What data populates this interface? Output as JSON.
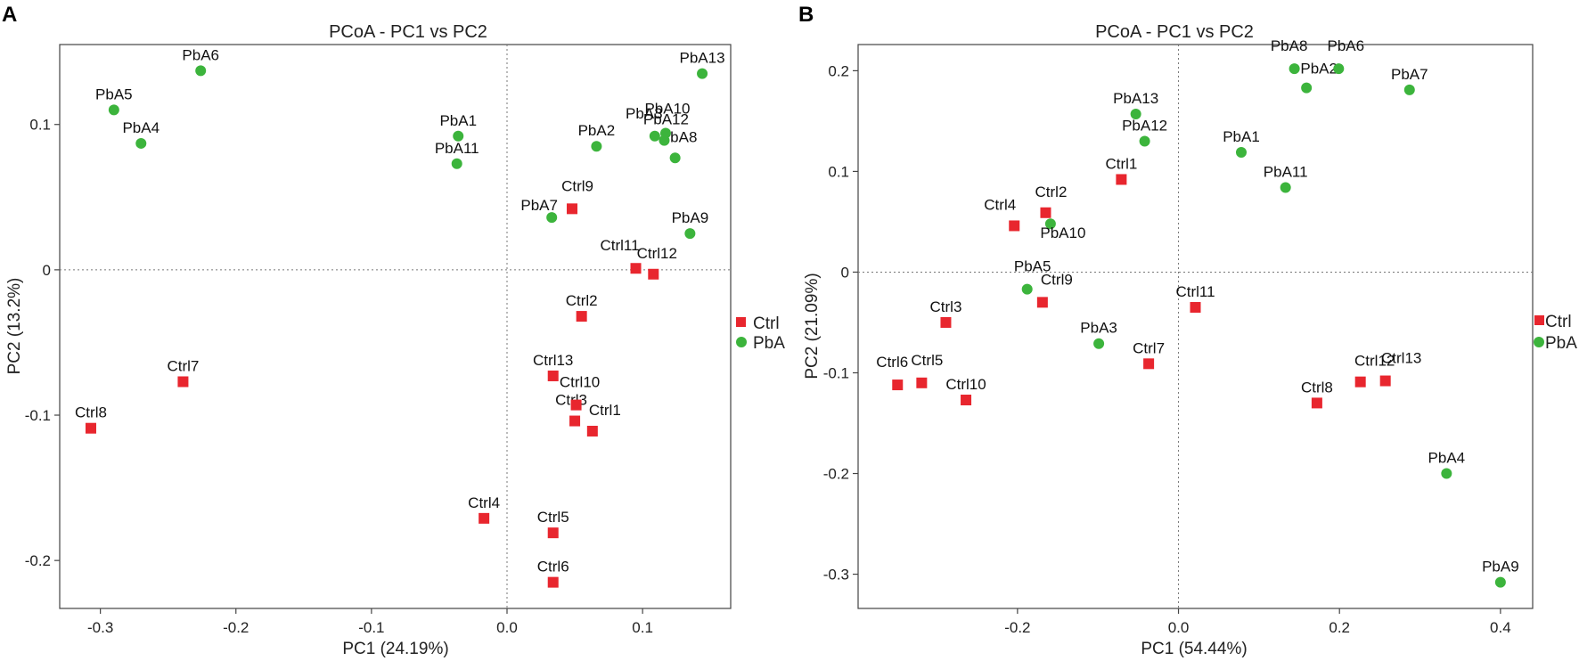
{
  "chart_data": [
    {
      "panel": "A",
      "type": "scatter",
      "title": "PCoA - PC1 vs PC2",
      "xlabel": "PC1 (24.19%)",
      "ylabel": "PC2 (13.2%)",
      "xlim": [
        -0.33,
        0.165
      ],
      "ylim": [
        -0.233,
        0.155
      ],
      "xticks": [
        -0.3,
        -0.2,
        -0.1,
        0.0,
        0.1
      ],
      "xtick_labels": [
        "-0.3",
        "-0.2",
        "-0.1",
        "0.0",
        "0.1"
      ],
      "yticks": [
        0.1,
        0,
        -0.1,
        -0.2
      ],
      "ytick_labels": [
        "0.1",
        "0",
        "-0.1",
        "-0.2"
      ],
      "legend": [
        {
          "name": "Ctrl",
          "color": "#e8262e",
          "marker": "square"
        },
        {
          "name": "PbA",
          "color": "#3cb43c",
          "marker": "circle"
        }
      ],
      "series": [
        {
          "name": "Ctrl",
          "points": [
            {
              "label": "Ctrl1",
              "x": 0.063,
              "y": -0.111
            },
            {
              "label": "Ctrl2",
              "x": 0.055,
              "y": -0.032
            },
            {
              "label": "Ctrl3",
              "x": 0.05,
              "y": -0.104
            },
            {
              "label": "Ctrl4",
              "x": -0.017,
              "y": -0.171
            },
            {
              "label": "Ctrl5",
              "x": 0.034,
              "y": -0.181
            },
            {
              "label": "Ctrl6",
              "x": 0.034,
              "y": -0.215
            },
            {
              "label": "Ctrl7",
              "x": -0.239,
              "y": -0.077
            },
            {
              "label": "Ctrl8",
              "x": -0.307,
              "y": -0.109
            },
            {
              "label": "Ctrl9",
              "x": 0.048,
              "y": 0.042
            },
            {
              "label": "Ctrl10",
              "x": 0.051,
              "y": -0.093
            },
            {
              "label": "Ctrl11",
              "x": 0.095,
              "y": 0.001
            },
            {
              "label": "Ctrl12",
              "x": 0.108,
              "y": -0.003
            },
            {
              "label": "Ctrl13",
              "x": 0.034,
              "y": -0.073
            }
          ]
        },
        {
          "name": "PbA",
          "points": [
            {
              "label": "PbA1",
              "x": -0.036,
              "y": 0.092
            },
            {
              "label": "PbA2",
              "x": 0.066,
              "y": 0.085
            },
            {
              "label": "PbA3",
              "x": 0.109,
              "y": 0.092
            },
            {
              "label": "PbA4",
              "x": -0.27,
              "y": 0.087
            },
            {
              "label": "PbA5",
              "x": -0.29,
              "y": 0.11
            },
            {
              "label": "PbA6",
              "x": -0.226,
              "y": 0.137
            },
            {
              "label": "PbA7",
              "x": 0.033,
              "y": 0.036
            },
            {
              "label": "PbA8",
              "x": 0.124,
              "y": 0.077
            },
            {
              "label": "PbA9",
              "x": 0.135,
              "y": 0.025
            },
            {
              "label": "PbA10",
              "x": 0.117,
              "y": 0.094
            },
            {
              "label": "PbA11",
              "x": -0.037,
              "y": 0.073
            },
            {
              "label": "PbA12",
              "x": 0.116,
              "y": 0.089
            },
            {
              "label": "PbA13",
              "x": 0.144,
              "y": 0.135
            }
          ]
        }
      ]
    },
    {
      "panel": "B",
      "type": "scatter",
      "title": "PCoA - PC1 vs PC2",
      "xlabel": "PC1 (54.44%)",
      "ylabel": "PC2 (21.09%)",
      "xlim": [
        -0.398,
        0.44
      ],
      "ylim": [
        -0.334,
        0.226
      ],
      "xticks": [
        -0.2,
        0.0,
        0.2,
        0.4
      ],
      "xtick_labels": [
        "-0.2",
        "0.0",
        "0.2",
        "0.4"
      ],
      "yticks": [
        0.2,
        0.1,
        0,
        -0.1,
        -0.2,
        -0.3
      ],
      "ytick_labels": [
        "0.2",
        "0.1",
        "0",
        "-0.1",
        "-0.2",
        "-0.3"
      ],
      "legend": [
        {
          "name": "Ctrl",
          "color": "#e8262e",
          "marker": "square"
        },
        {
          "name": "PbA",
          "color": "#3cb43c",
          "marker": "circle"
        }
      ],
      "series": [
        {
          "name": "Ctrl",
          "points": [
            {
              "label": "Ctrl1",
              "x": -0.071,
              "y": 0.092
            },
            {
              "label": "Ctrl2",
              "x": -0.165,
              "y": 0.059
            },
            {
              "label": "Ctrl3",
              "x": -0.289,
              "y": -0.05
            },
            {
              "label": "Ctrl4",
              "x": -0.204,
              "y": 0.046
            },
            {
              "label": "Ctrl5",
              "x": -0.319,
              "y": -0.11
            },
            {
              "label": "Ctrl6",
              "x": -0.349,
              "y": -0.112
            },
            {
              "label": "Ctrl7",
              "x": -0.037,
              "y": -0.091
            },
            {
              "label": "Ctrl8",
              "x": 0.172,
              "y": -0.13
            },
            {
              "label": "Ctrl9",
              "x": -0.169,
              "y": -0.03
            },
            {
              "label": "Ctrl10",
              "x": -0.264,
              "y": -0.127
            },
            {
              "label": "Ctrl11",
              "x": 0.021,
              "y": -0.035
            },
            {
              "label": "Ctrl12",
              "x": 0.226,
              "y": -0.109
            },
            {
              "label": "Ctrl13",
              "x": 0.257,
              "y": -0.108
            }
          ]
        },
        {
          "name": "PbA",
          "points": [
            {
              "label": "PbA1",
              "x": 0.078,
              "y": 0.119
            },
            {
              "label": "PbA2",
              "x": 0.159,
              "y": 0.183
            },
            {
              "label": "PbA3",
              "x": -0.099,
              "y": -0.071
            },
            {
              "label": "PbA4",
              "x": 0.333,
              "y": -0.2
            },
            {
              "label": "PbA5",
              "x": -0.188,
              "y": -0.017
            },
            {
              "label": "PbA6",
              "x": 0.199,
              "y": 0.202
            },
            {
              "label": "PbA7",
              "x": 0.287,
              "y": 0.181
            },
            {
              "label": "PbA8",
              "x": 0.144,
              "y": 0.202
            },
            {
              "label": "PbA9",
              "x": 0.4,
              "y": -0.308
            },
            {
              "label": "PbA10",
              "x": -0.159,
              "y": 0.048
            },
            {
              "label": "PbA11",
              "x": 0.133,
              "y": 0.084
            },
            {
              "label": "PbA12",
              "x": -0.042,
              "y": 0.13
            },
            {
              "label": "PbA13",
              "x": -0.053,
              "y": 0.157
            }
          ]
        }
      ]
    }
  ]
}
